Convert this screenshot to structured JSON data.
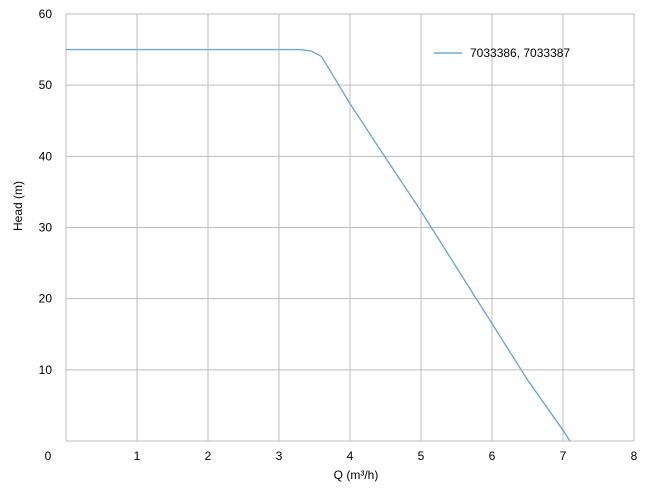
{
  "chart_data": {
    "type": "line",
    "title": "",
    "xlabel": "Q (m³/h)",
    "ylabel": "Head (m)",
    "xlim": [
      0,
      8
    ],
    "ylim": [
      0,
      60
    ],
    "x_ticks": [
      "0",
      "1",
      "2",
      "3",
      "4",
      "5",
      "6",
      "7",
      "8"
    ],
    "y_ticks": [
      "10",
      "20",
      "30",
      "40",
      "50",
      "60"
    ],
    "grid": true,
    "legend_position": "top-right",
    "series": [
      {
        "name": "7033386, 7033387",
        "color": "#6fa8dc",
        "x": [
          0,
          1,
          2,
          3,
          3.3,
          3.45,
          3.55,
          3.6,
          4.0,
          4.5,
          5.0,
          5.5,
          6.0,
          6.5,
          7.0,
          7.1
        ],
        "y": [
          55,
          55,
          55,
          55,
          55,
          54.8,
          54.3,
          54.0,
          47.4,
          39.8,
          32.3,
          24.4,
          16.5,
          8.6,
          1.5,
          0
        ]
      }
    ]
  }
}
